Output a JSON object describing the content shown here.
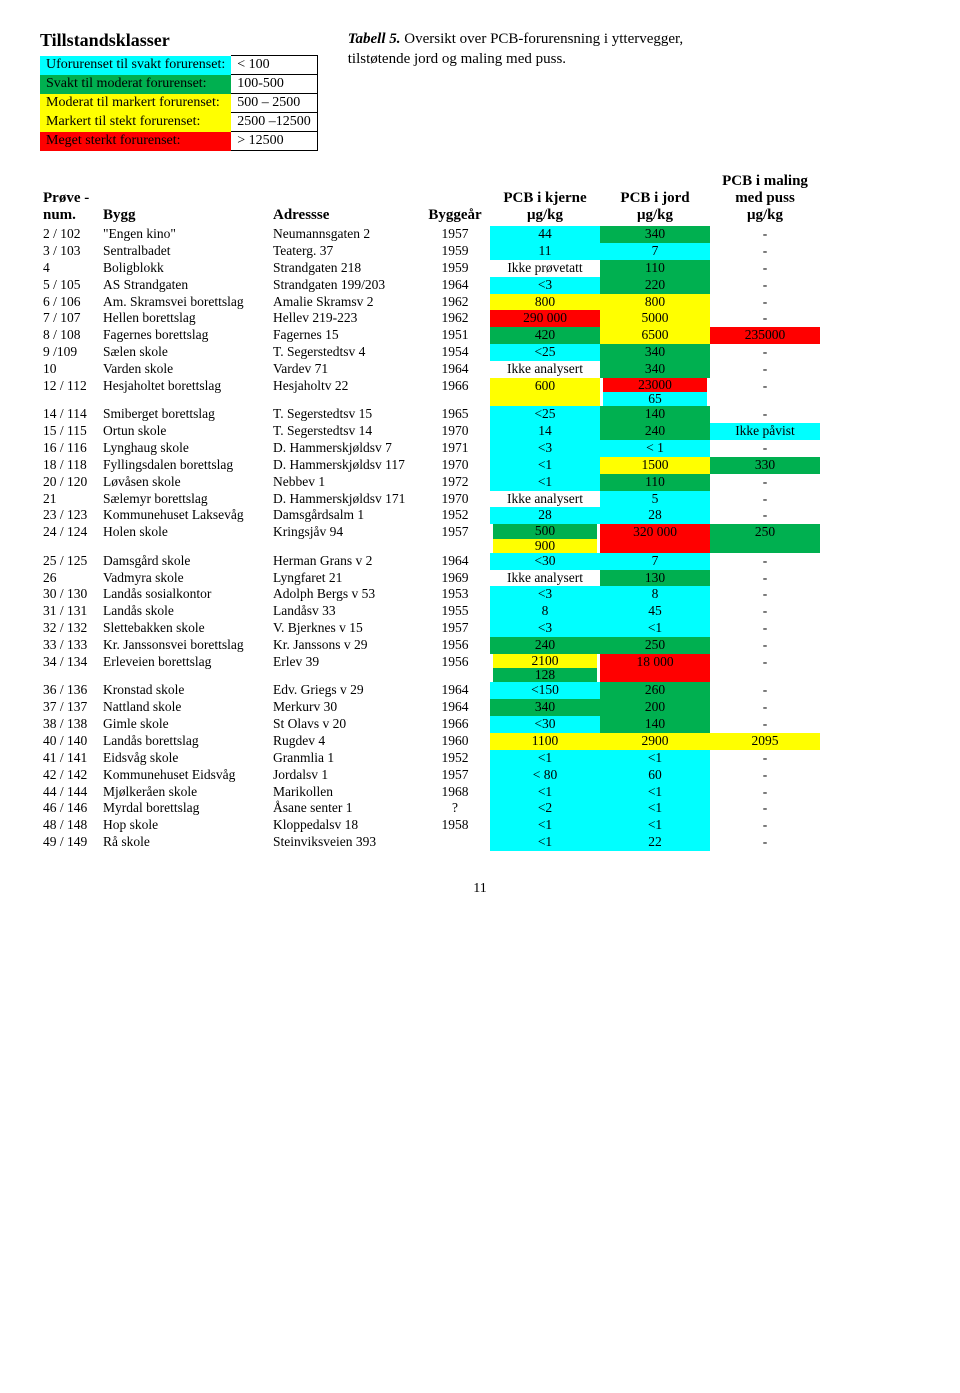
{
  "colors": {
    "cyan": "#00ffff",
    "green": "#00b050",
    "yellow": "#ffff00",
    "red": "#ff0000",
    "white": "#ffffff"
  },
  "legend": {
    "title": "Tillstandsklasser",
    "rows": [
      {
        "label": "Uforurenset til svakt forurenset:",
        "range": "< 100",
        "color": "cyan"
      },
      {
        "label": "Svakt til moderat forurenset:",
        "range": "100-500",
        "color": "green"
      },
      {
        "label": "Moderat til markert forurenset:",
        "range": "500 – 2500",
        "color": "yellow"
      },
      {
        "label": "Markert til stekt forurenset:",
        "range": "2500 –12500",
        "color": "yellow"
      },
      {
        "label": "Meget sterkt forurenset:",
        "range": "> 12500",
        "color": "red"
      }
    ]
  },
  "caption": {
    "title": "Tabell 5.",
    "text": " Oversikt over PCB-forurensning i yttervegger, tilstøtende jord og maling med puss."
  },
  "headers": {
    "c1": "Prøve -num.",
    "c2": "Bygg",
    "c3": "Adressse",
    "c4": "Byggeår",
    "c5a": "PCB i kjerne",
    "c5b": "μg/kg",
    "c6a": "PCB i jord",
    "c6b": "μg/kg",
    "c7a": "PCB i maling med puss",
    "c7b": "μg/kg"
  },
  "rows": [
    {
      "id": "2 / 102",
      "bygg": "\"Engen kino\"",
      "adr": "Neumannsgaten 2",
      "yr": "1957",
      "k": {
        "v": "44",
        "c": "cyan"
      },
      "j": {
        "v": "340",
        "c": "green"
      },
      "m": {
        "v": "-",
        "c": "white"
      }
    },
    {
      "id": "3 / 103",
      "bygg": "Sentralbadet",
      "adr": "Teaterg. 37",
      "yr": "1959",
      "k": {
        "v": "11",
        "c": "cyan"
      },
      "j": {
        "v": "7",
        "c": "cyan"
      },
      "m": {
        "v": "-",
        "c": "white"
      }
    },
    {
      "id": "4",
      "bygg": "Boligblokk",
      "adr": "Strandgaten 218",
      "yr": "1959",
      "k": {
        "v": "Ikke prøvetatt",
        "c": "white"
      },
      "j": {
        "v": "110",
        "c": "green"
      },
      "m": {
        "v": "-",
        "c": "white"
      }
    },
    {
      "id": "5 / 105",
      "bygg": "AS Strandgaten",
      "adr": "Strandgaten 199/203",
      "yr": "1964",
      "k": {
        "v": "<3",
        "c": "cyan"
      },
      "j": {
        "v": "220",
        "c": "green"
      },
      "m": {
        "v": "-",
        "c": "white"
      }
    },
    {
      "id": "6 / 106",
      "bygg": "Am. Skramsvei borettslag",
      "adr": "Amalie Skramsv 2",
      "yr": "1962",
      "k": {
        "v": "800",
        "c": "yellow"
      },
      "j": {
        "v": "800",
        "c": "yellow"
      },
      "m": {
        "v": "-",
        "c": "white"
      }
    },
    {
      "id": "7 / 107",
      "bygg": "Hellen borettslag",
      "adr": "Hellev 219-223",
      "yr": "1962",
      "k": {
        "v": "290 000",
        "c": "red"
      },
      "j": {
        "v": "5000",
        "c": "yellow"
      },
      "m": {
        "v": "-",
        "c": "white"
      }
    },
    {
      "id": "8 / 108",
      "bygg": "Fagernes borettslag",
      "adr": "Fagernes 15",
      "yr": "1951",
      "k": {
        "v": "420",
        "c": "green"
      },
      "j": {
        "v": "6500",
        "c": "yellow"
      },
      "m": {
        "v": "235000",
        "c": "red"
      }
    },
    {
      "id": "9 /109",
      "bygg": "Sælen skole",
      "adr": "T. Segerstedtsv 4",
      "yr": "1954",
      "k": {
        "v": "<25",
        "c": "cyan"
      },
      "j": {
        "v": "340",
        "c": "green"
      },
      "m": {
        "v": "-",
        "c": "white"
      }
    },
    {
      "id": "10",
      "bygg": "Varden skole",
      "adr": "Vardev 71",
      "yr": "1964",
      "k": {
        "v": "Ikke analysert",
        "c": "white"
      },
      "j": {
        "v": "340",
        "c": "green"
      },
      "m": {
        "v": "-",
        "c": "white"
      }
    },
    {
      "id": "12 / 112",
      "bygg": "Hesjaholtet borettslag",
      "adr": "Hesjaholtv 22",
      "yr": "1966",
      "k": {
        "v": "600",
        "c": "yellow"
      },
      "j": {
        "v": [
          "23000",
          "65"
        ],
        "c": [
          "red",
          "cyan"
        ]
      },
      "m": {
        "v": "-",
        "c": "white"
      }
    },
    {
      "id": "14 / 114",
      "bygg": "Smiberget borettslag",
      "adr": "T. Segerstedtsv 15",
      "yr": "1965",
      "k": {
        "v": "<25",
        "c": "cyan"
      },
      "j": {
        "v": "140",
        "c": "green"
      },
      "m": {
        "v": "-",
        "c": "white"
      }
    },
    {
      "id": "15 / 115",
      "bygg": "Ortun skole",
      "adr": "T. Segerstedtsv 14",
      "yr": "1970",
      "k": {
        "v": "14",
        "c": "cyan"
      },
      "j": {
        "v": "240",
        "c": "green"
      },
      "m": {
        "v": "Ikke påvist",
        "c": "cyan"
      }
    },
    {
      "id": "16 / 116",
      "bygg": "Lynghaug skole",
      "adr": "D. Hammerskjøldsv 7",
      "yr": "1971",
      "k": {
        "v": "<3",
        "c": "cyan"
      },
      "j": {
        "v": "< 1",
        "c": "cyan"
      },
      "m": {
        "v": "-",
        "c": "white"
      }
    },
    {
      "id": "18 / 118",
      "bygg": "Fyllingsdalen borettslag",
      "adr": "D. Hammerskjøldsv 117",
      "yr": "1970",
      "k": {
        "v": "<1",
        "c": "cyan"
      },
      "j": {
        "v": "1500",
        "c": "yellow"
      },
      "m": {
        "v": "330",
        "c": "green"
      }
    },
    {
      "id": "20 / 120",
      "bygg": "Løvåsen skole",
      "adr": "Nebbev 1",
      "yr": "1972",
      "k": {
        "v": "<1",
        "c": "cyan"
      },
      "j": {
        "v": "110",
        "c": "green"
      },
      "m": {
        "v": "-",
        "c": "white"
      }
    },
    {
      "id": "21",
      "bygg": "Sælemyr borettslag",
      "adr": "D. Hammerskjøldsv 171",
      "yr": "1970",
      "k": {
        "v": "Ikke analysert",
        "c": "white"
      },
      "j": {
        "v": "5",
        "c": "cyan"
      },
      "m": {
        "v": "-",
        "c": "white"
      }
    },
    {
      "id": "23 / 123",
      "bygg": "Kommunehuset Laksevåg",
      "adr": "Damsgårdsalm 1",
      "yr": "1952",
      "k": {
        "v": "28",
        "c": "cyan"
      },
      "j": {
        "v": "28",
        "c": "cyan"
      },
      "m": {
        "v": "-",
        "c": "white"
      }
    },
    {
      "id": "24 / 124",
      "bygg": "Holen skole",
      "adr": "Kringsjåv 94",
      "yr": "1957",
      "k": {
        "v": [
          "500",
          "900"
        ],
        "c": [
          "green",
          "yellow"
        ]
      },
      "j": {
        "v": "320 000",
        "c": "red"
      },
      "m": {
        "v": "250",
        "c": "green"
      }
    },
    {
      "id": "25 / 125",
      "bygg": "Damsgård skole",
      "adr": "Herman Grans v 2",
      "yr": "1964",
      "k": {
        "v": "<30",
        "c": "cyan"
      },
      "j": {
        "v": "7",
        "c": "cyan"
      },
      "m": {
        "v": "-",
        "c": "white"
      }
    },
    {
      "id": "26",
      "bygg": "Vadmyra skole",
      "adr": "Lyngfaret 21",
      "yr": "1969",
      "k": {
        "v": "Ikke analysert",
        "c": "white"
      },
      "j": {
        "v": "130",
        "c": "green"
      },
      "m": {
        "v": "-",
        "c": "white"
      }
    },
    {
      "id": "30 / 130",
      "bygg": "Landås sosialkontor",
      "adr": "Adolph Bergs v 53",
      "yr": "1953",
      "k": {
        "v": "<3",
        "c": "cyan"
      },
      "j": {
        "v": "8",
        "c": "cyan"
      },
      "m": {
        "v": "-",
        "c": "white"
      }
    },
    {
      "id": "31 / 131",
      "bygg": "Landås skole",
      "adr": "Landåsv 33",
      "yr": "1955",
      "k": {
        "v": "8",
        "c": "cyan"
      },
      "j": {
        "v": "45",
        "c": "cyan"
      },
      "m": {
        "v": "-",
        "c": "white"
      }
    },
    {
      "id": "32 / 132",
      "bygg": "Slettebakken skole",
      "adr": "V. Bjerknes v 15",
      "yr": "1957",
      "k": {
        "v": "<3",
        "c": "cyan"
      },
      "j": {
        "v": "<1",
        "c": "cyan"
      },
      "m": {
        "v": "-",
        "c": "white"
      }
    },
    {
      "id": "33 / 133",
      "bygg": "Kr. Janssonsvei borettslag",
      "adr": "Kr. Janssons v 29",
      "yr": "1956",
      "k": {
        "v": "240",
        "c": "green"
      },
      "j": {
        "v": "250",
        "c": "green"
      },
      "m": {
        "v": "-",
        "c": "white"
      }
    },
    {
      "id": "34 / 134",
      "bygg": "Erleveien borettslag",
      "adr": "Erlev 39",
      "yr": "1956",
      "k": {
        "v": [
          "2100",
          "128"
        ],
        "c": [
          "yellow",
          "green"
        ]
      },
      "j": {
        "v": "18 000",
        "c": "red"
      },
      "m": {
        "v": "-",
        "c": "white"
      }
    },
    {
      "id": "36 / 136",
      "bygg": "Kronstad skole",
      "adr": "Edv. Griegs v 29",
      "yr": "1964",
      "k": {
        "v": "<150",
        "c": "cyan"
      },
      "j": {
        "v": "260",
        "c": "green"
      },
      "m": {
        "v": "-",
        "c": "white"
      }
    },
    {
      "id": "37 / 137",
      "bygg": "Nattland skole",
      "adr": "Merkurv 30",
      "yr": "1964",
      "k": {
        "v": "340",
        "c": "green"
      },
      "j": {
        "v": "200",
        "c": "green"
      },
      "m": {
        "v": "-",
        "c": "white"
      }
    },
    {
      "id": "38 / 138",
      "bygg": "Gimle skole",
      "adr": "St Olavs v 20",
      "yr": "1966",
      "k": {
        "v": "<30",
        "c": "cyan"
      },
      "j": {
        "v": "140",
        "c": "green"
      },
      "m": {
        "v": "-",
        "c": "white"
      }
    },
    {
      "id": "40 / 140",
      "bygg": "Landås borettslag",
      "adr": "Rugdev 4",
      "yr": "1960",
      "k": {
        "v": "1100",
        "c": "yellow"
      },
      "j": {
        "v": "2900",
        "c": "yellow"
      },
      "m": {
        "v": "2095",
        "c": "yellow"
      }
    },
    {
      "id": "41 / 141",
      "bygg": "Eidsvåg skole",
      "adr": "Granmlia 1",
      "yr": "1952",
      "k": {
        "v": "<1",
        "c": "cyan"
      },
      "j": {
        "v": "<1",
        "c": "cyan"
      },
      "m": {
        "v": "-",
        "c": "white"
      }
    },
    {
      "id": "42 / 142",
      "bygg": "Kommunehuset Eidsvåg",
      "adr": "Jordalsv 1",
      "yr": "1957",
      "k": {
        "v": "< 80",
        "c": "cyan"
      },
      "j": {
        "v": "60",
        "c": "cyan"
      },
      "m": {
        "v": "-",
        "c": "white"
      }
    },
    {
      "id": "44 / 144",
      "bygg": "Mjølkeråen skole",
      "adr": "Marikollen",
      "yr": "1968",
      "k": {
        "v": "<1",
        "c": "cyan"
      },
      "j": {
        "v": "<1",
        "c": "cyan"
      },
      "m": {
        "v": "-",
        "c": "white"
      }
    },
    {
      "id": "46 / 146",
      "bygg": "Myrdal borettslag",
      "adr": "Åsane senter 1",
      "yr": "?",
      "k": {
        "v": "<2",
        "c": "cyan"
      },
      "j": {
        "v": "<1",
        "c": "cyan"
      },
      "m": {
        "v": "-",
        "c": "white"
      }
    },
    {
      "id": "48 / 148",
      "bygg": "Hop skole",
      "adr": "Kloppedalsv 18",
      "yr": "1958",
      "k": {
        "v": "<1",
        "c": "cyan"
      },
      "j": {
        "v": "<1",
        "c": "cyan"
      },
      "m": {
        "v": "-",
        "c": "white"
      }
    },
    {
      "id": "49 / 149",
      "bygg": "Rå skole",
      "adr": "Steinviksveien 393",
      "yr": "",
      "k": {
        "v": "<1",
        "c": "cyan"
      },
      "j": {
        "v": "22",
        "c": "cyan"
      },
      "m": {
        "v": "-",
        "c": "white"
      }
    }
  ],
  "pagenum": "11"
}
